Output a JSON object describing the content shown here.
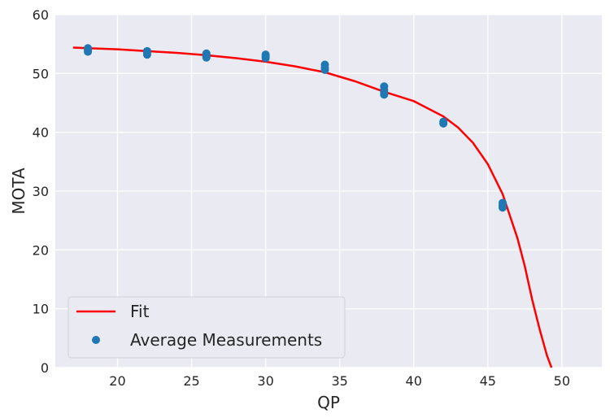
{
  "chart_data": {
    "type": "scatter",
    "title": "",
    "xlabel": "QP",
    "ylabel": "MOTA",
    "xlim": [
      15.8,
      52.7
    ],
    "ylim": [
      0,
      60
    ],
    "xticks": [
      20,
      25,
      30,
      35,
      40,
      45,
      50
    ],
    "yticks": [
      0,
      10,
      20,
      30,
      40,
      50,
      60
    ],
    "grid": true,
    "legend": {
      "placement": "lower-left",
      "entries": [
        "Fit",
        "Average Measurements"
      ]
    },
    "colors": {
      "fit": "#ff0000",
      "points": "#1f77b4",
      "background": "#eaeaf2",
      "grid": "#ffffff"
    },
    "series": [
      {
        "name": "Fit",
        "type": "line",
        "x": [
          17,
          18,
          20,
          22,
          24,
          26,
          28,
          30,
          32,
          34,
          36,
          38,
          40,
          42,
          43,
          44,
          45,
          46,
          47,
          47.5,
          48,
          48.5,
          49,
          49.3
        ],
        "y": [
          54.4,
          54.3,
          54.1,
          53.8,
          53.5,
          53.1,
          52.6,
          52.0,
          51.2,
          50.2,
          48.7,
          46.9,
          45.3,
          42.7,
          40.8,
          38.2,
          34.6,
          29.5,
          22.0,
          17.2,
          11.5,
          6.5,
          2.0,
          0.0
        ]
      },
      {
        "name": "Average Measurements",
        "type": "scatter",
        "x": [
          18,
          18,
          18,
          22,
          22,
          22,
          26,
          26,
          26,
          26,
          30,
          30,
          30,
          34,
          34,
          34,
          38,
          38,
          38,
          38,
          42,
          42,
          46,
          46,
          46
        ],
        "y": [
          54.3,
          54.0,
          53.7,
          53.8,
          53.5,
          53.2,
          53.4,
          53.2,
          52.9,
          52.7,
          53.2,
          52.9,
          52.6,
          51.5,
          51.0,
          50.6,
          47.8,
          47.2,
          46.8,
          46.4,
          41.8,
          41.5,
          28.0,
          27.6,
          27.2
        ]
      }
    ]
  }
}
